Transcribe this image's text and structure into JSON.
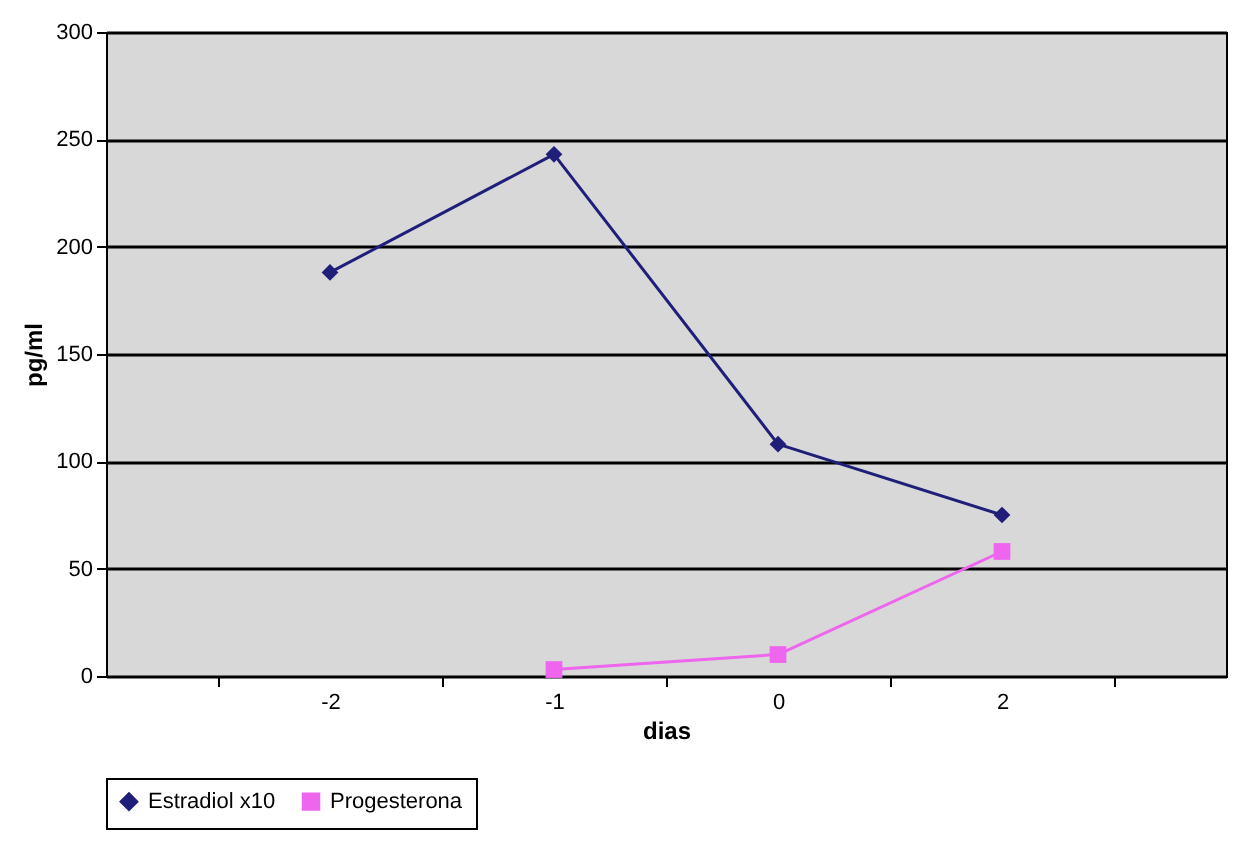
{
  "chart_data": {
    "type": "line",
    "xlabel": "dias",
    "ylabel": "pg/ml",
    "categories": [
      "-2",
      "-1",
      "0",
      "2"
    ],
    "series": [
      {
        "name": "Estradiol x10",
        "color": "#1f1f7a",
        "marker": "diamond",
        "values": [
          188,
          243,
          108,
          75
        ]
      },
      {
        "name": "Progesterona",
        "color": "#ee66ee",
        "marker": "square",
        "values": [
          null,
          3,
          10,
          58
        ]
      }
    ],
    "ylim": [
      0,
      300
    ],
    "yticks": [
      0,
      50,
      100,
      150,
      200,
      250,
      300
    ],
    "grid": "y",
    "legend": "bottom"
  }
}
